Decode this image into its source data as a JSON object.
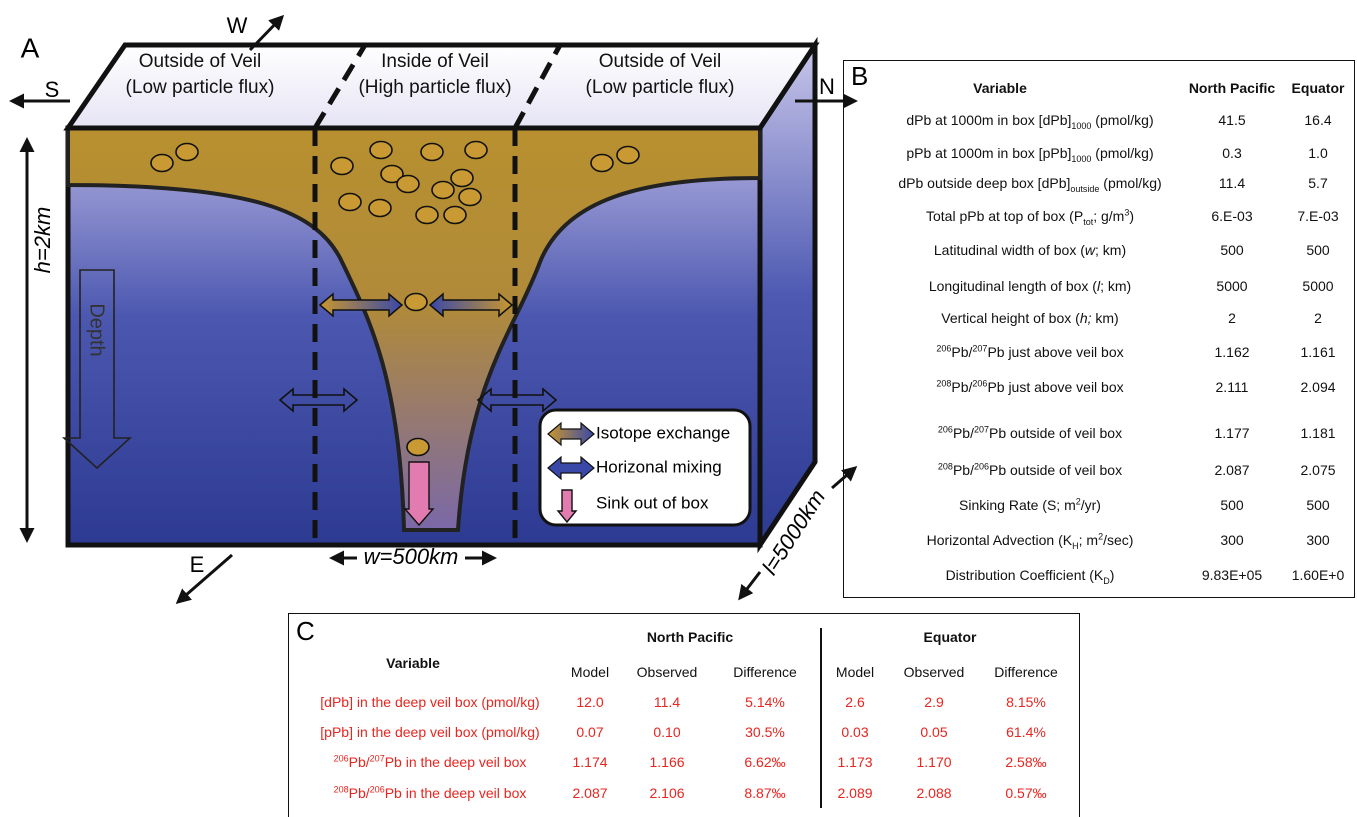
{
  "panel_a": {
    "label": "A",
    "compass": {
      "w": "W",
      "s": "S",
      "n": "N",
      "e": "E"
    },
    "regions": [
      {
        "title": "Outside of Veil",
        "subtitle": "(Low particle flux)"
      },
      {
        "title": "Inside of Veil",
        "subtitle": "(High particle flux)"
      },
      {
        "title": "Outside of Veil",
        "subtitle": "(Low particle flux)"
      }
    ],
    "height_label": "h=2km",
    "depth_label": "Depth",
    "width_label": "w=500km",
    "length_label": "l=5000km",
    "legend": [
      "Isotope exchange",
      "Horizonal mixing",
      "Sink out of box"
    ]
  },
  "panel_b": {
    "label": "B",
    "headers": [
      "Variable",
      "North Pacific",
      "Equator"
    ],
    "rows": [
      {
        "variable": [
          {
            "t": "dPb at 1000m in box [dPb]"
          },
          {
            "sub": "1000"
          },
          {
            "t": " (pmol/kg)"
          }
        ],
        "north_pacific": "41.5",
        "equator": "16.4"
      },
      {
        "variable": [
          {
            "t": "pPb at 1000m in box [pPb]"
          },
          {
            "sub": "1000"
          },
          {
            "t": " (pmol/kg)"
          }
        ],
        "north_pacific": "0.3",
        "equator": "1.0"
      },
      {
        "variable": [
          {
            "t": "dPb outside deep box [dPb]"
          },
          {
            "sub": "outside"
          },
          {
            "t": " (pmol/kg)"
          }
        ],
        "north_pacific": "11.4",
        "equator": "5.7"
      },
      {
        "variable": [
          {
            "t": "Total pPb at top of box (P"
          },
          {
            "sub": "tot"
          },
          {
            "t": "; g/m"
          },
          {
            "sup": "3"
          },
          {
            "t": ")"
          }
        ],
        "north_pacific": "6.E-03",
        "equator": "7.E-03"
      },
      {
        "variable": [
          {
            "t": "Latitudinal width of box ("
          },
          {
            "i": "w"
          },
          {
            "t": "; km)"
          }
        ],
        "north_pacific": "500",
        "equator": "500"
      },
      {
        "variable": [
          {
            "t": "Longitudinal length of box ("
          },
          {
            "i": "l"
          },
          {
            "t": "; km)"
          }
        ],
        "north_pacific": "5000",
        "equator": "5000"
      },
      {
        "variable": [
          {
            "t": "Vertical height of box ("
          },
          {
            "i": "h;"
          },
          {
            "t": " km)"
          }
        ],
        "north_pacific": "2",
        "equator": "2"
      },
      {
        "variable": [
          {
            "sup": "206"
          },
          {
            "t": "Pb/"
          },
          {
            "sup": "207"
          },
          {
            "t": "Pb just above veil box"
          }
        ],
        "north_pacific": "1.162",
        "equator": "1.161"
      },
      {
        "variable": [
          {
            "sup": "208"
          },
          {
            "t": "Pb/"
          },
          {
            "sup": "206"
          },
          {
            "t": "Pb just above veil box"
          }
        ],
        "north_pacific": "2.111",
        "equator": "2.094"
      },
      {
        "variable": [
          {
            "sup": "206"
          },
          {
            "t": "Pb/"
          },
          {
            "sup": "207"
          },
          {
            "t": "Pb outside of veil box"
          }
        ],
        "north_pacific": "1.177",
        "equator": "1.181"
      },
      {
        "variable": [
          {
            "sup": "208"
          },
          {
            "t": "Pb/"
          },
          {
            "sup": "206"
          },
          {
            "t": "Pb outside of veil box"
          }
        ],
        "north_pacific": "2.087",
        "equator": "2.075"
      },
      {
        "variable": [
          {
            "t": "Sinking Rate (S; m"
          },
          {
            "sup": "2"
          },
          {
            "t": "/yr)"
          }
        ],
        "north_pacific": "500",
        "equator": "500"
      },
      {
        "variable": [
          {
            "t": "Horizontal Advection (K"
          },
          {
            "sub": "H"
          },
          {
            "t": "; m"
          },
          {
            "sup": "2"
          },
          {
            "t": "/sec)"
          }
        ],
        "north_pacific": "300",
        "equator": "300"
      },
      {
        "variable": [
          {
            "t": "Distribution Coefficient (K"
          },
          {
            "sub": "D"
          },
          {
            "t": ")"
          }
        ],
        "north_pacific": "9.83E+05",
        "equator": "1.60E+0"
      }
    ]
  },
  "panel_c": {
    "label": "C",
    "variable_header": "Variable",
    "groups": [
      "North Pacific",
      "Equator"
    ],
    "columns": [
      "Model",
      "Observed",
      "Difference"
    ],
    "rows": [
      {
        "variable": [
          {
            "t": "[dPb] in the deep veil box (pmol/kg)"
          }
        ],
        "north_pacific": [
          "12.0",
          "11.4",
          "5.14%"
        ],
        "equator": [
          "2.6",
          "2.9",
          "8.15%"
        ]
      },
      {
        "variable": [
          {
            "t": "[pPb] in the deep veil box (pmol/kg)"
          }
        ],
        "north_pacific": [
          "0.07",
          "0.10",
          "30.5%"
        ],
        "equator": [
          "0.03",
          "0.05",
          "61.4%"
        ]
      },
      {
        "variable": [
          {
            "sup": "206"
          },
          {
            "t": "Pb/"
          },
          {
            "sup": "207"
          },
          {
            "t": "Pb in the deep veil box"
          }
        ],
        "north_pacific": [
          "1.174",
          "1.166",
          "6.62‰"
        ],
        "equator": [
          "1.173",
          "1.170",
          "2.58‰"
        ]
      },
      {
        "variable": [
          {
            "sup": "208"
          },
          {
            "t": "Pb/"
          },
          {
            "sup": "206"
          },
          {
            "t": "Pb in the deep veil box"
          }
        ],
        "north_pacific": [
          "2.087",
          "2.106",
          "8.87‰"
        ],
        "equator": [
          "2.089",
          "2.088",
          "0.57‰"
        ]
      }
    ]
  }
}
